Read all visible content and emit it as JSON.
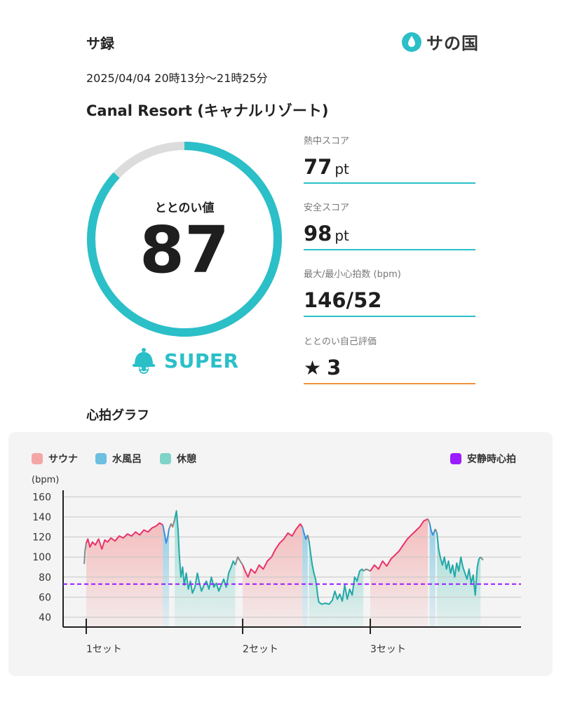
{
  "header": {
    "app_title": "サ録",
    "brand_name": "サの国",
    "datetime": "2025/04/04 20時13分〜21時25分",
    "facility": "Canal Resort (キャナルリゾート)"
  },
  "score": {
    "label": "ととのい値",
    "value": "87",
    "ring_fraction": 0.87,
    "rank": "SUPER",
    "rank_icon": "bell-character-icon"
  },
  "stats": [
    {
      "label": "熱中スコア",
      "value": "77",
      "unit": "pt"
    },
    {
      "label": "安全スコア",
      "value": "98",
      "unit": "pt"
    },
    {
      "label": "最大/最小心拍数 (bpm)",
      "value": "146/52",
      "unit": ""
    },
    {
      "label": "ととのい自己評価",
      "value": "3",
      "unit": "",
      "icon": "star-icon"
    }
  ],
  "graph": {
    "title": "心拍グラフ",
    "legend": {
      "sauna": "サウナ",
      "water": "水風呂",
      "rest": "休憩",
      "resting_hr": "安静時心拍"
    }
  },
  "colors": {
    "accent": "#2bbfc8",
    "sauna": "#f4a6a6",
    "water": "#6cbfe0",
    "rest": "#7fd3c8",
    "resting_hr": "#9b1cff",
    "sauna_line": "#e8336b",
    "rest_line": "#23a8a8",
    "water_line": "#3b8fdc",
    "transition_line": "#888888",
    "orange": "#f2913a"
  },
  "chart_data": {
    "type": "line",
    "ylabel": "(bpm)",
    "ylim": [
      30,
      170
    ],
    "y_ticks": [
      40,
      60,
      80,
      100,
      120,
      140,
      160
    ],
    "set_labels": [
      "1セット",
      "2セット",
      "3セット"
    ],
    "xlim": [
      0,
      100
    ],
    "set_positions": [
      0,
      38,
      69
    ],
    "resting_hr": 73,
    "segments": [
      {
        "phase": "sauna",
        "start": 0,
        "end": 18.6
      },
      {
        "phase": "water",
        "start": 18.6,
        "end": 20.1
      },
      {
        "phase": "rest",
        "start": 21.5,
        "end": 36.2
      },
      {
        "phase": "sauna",
        "start": 38,
        "end": 52.5
      },
      {
        "phase": "water",
        "start": 52.5,
        "end": 53.8
      },
      {
        "phase": "rest",
        "start": 54.1,
        "end": 67.3
      },
      {
        "phase": "sauna",
        "start": 69,
        "end": 83
      },
      {
        "phase": "water",
        "start": 83.4,
        "end": 84.8
      },
      {
        "phase": "rest",
        "start": 85.2,
        "end": 95.8
      }
    ],
    "series": [
      {
        "phase": "transition",
        "points": [
          [
            -0.5,
            93
          ],
          [
            -0.3,
            106
          ],
          [
            0,
            114
          ]
        ]
      },
      {
        "phase": "sauna",
        "points": [
          [
            0,
            114
          ],
          [
            0.4,
            118
          ],
          [
            0.9,
            110
          ],
          [
            1.5,
            115
          ],
          [
            2.2,
            112
          ],
          [
            3,
            118
          ],
          [
            3.8,
            108
          ],
          [
            4.5,
            117
          ],
          [
            5.2,
            115
          ],
          [
            6,
            119
          ],
          [
            7,
            116
          ],
          [
            8,
            121
          ],
          [
            9,
            119
          ],
          [
            10,
            123
          ],
          [
            11,
            121
          ],
          [
            12,
            125
          ],
          [
            13,
            122
          ],
          [
            14,
            127
          ],
          [
            15,
            125
          ],
          [
            16,
            129
          ],
          [
            17,
            131
          ],
          [
            17.8,
            134
          ],
          [
            18.6,
            132
          ]
        ]
      },
      {
        "phase": "water",
        "points": [
          [
            18.6,
            132
          ],
          [
            19,
            124
          ],
          [
            19.4,
            114
          ],
          [
            19.8,
            120
          ],
          [
            20.1,
            128
          ]
        ]
      },
      {
        "phase": "transition",
        "points": [
          [
            20.1,
            128
          ],
          [
            20.6,
            133
          ],
          [
            21,
            130
          ],
          [
            21.5,
            138
          ]
        ]
      },
      {
        "phase": "rest",
        "points": [
          [
            21.5,
            138
          ],
          [
            21.9,
            146
          ],
          [
            22.3,
            128
          ],
          [
            22.6,
            102
          ],
          [
            23,
            80
          ],
          [
            23.4,
            90
          ],
          [
            23.8,
            72
          ],
          [
            24.3,
            84
          ],
          [
            24.8,
            68
          ],
          [
            25.3,
            76
          ],
          [
            25.8,
            64
          ],
          [
            26.4,
            70
          ],
          [
            27,
            84
          ],
          [
            27.5,
            74
          ],
          [
            28,
            66
          ],
          [
            28.6,
            72
          ],
          [
            29.2,
            76
          ],
          [
            29.8,
            68
          ],
          [
            30.4,
            80
          ],
          [
            31,
            70
          ],
          [
            31.6,
            74
          ],
          [
            32.2,
            66
          ],
          [
            32.8,
            72
          ],
          [
            33.4,
            78
          ],
          [
            34,
            70
          ],
          [
            34.6,
            84
          ],
          [
            35.2,
            90
          ],
          [
            35.7,
            96
          ],
          [
            36.2,
            92
          ]
        ]
      },
      {
        "phase": "transition",
        "points": [
          [
            36.2,
            92
          ],
          [
            36.8,
            100
          ],
          [
            37.4,
            96
          ],
          [
            38,
            92
          ]
        ]
      },
      {
        "phase": "sauna",
        "points": [
          [
            38,
            92
          ],
          [
            38.6,
            86
          ],
          [
            39.3,
            80
          ],
          [
            40,
            88
          ],
          [
            41,
            84
          ],
          [
            42,
            92
          ],
          [
            43,
            88
          ],
          [
            44,
            96
          ],
          [
            45,
            100
          ],
          [
            46,
            108
          ],
          [
            47,
            114
          ],
          [
            48,
            118
          ],
          [
            49,
            124
          ],
          [
            50,
            121
          ],
          [
            51,
            128
          ],
          [
            52,
            133
          ],
          [
            52.5,
            130
          ]
        ]
      },
      {
        "phase": "water",
        "points": [
          [
            52.5,
            130
          ],
          [
            52.9,
            124
          ],
          [
            53.3,
            118
          ],
          [
            53.8,
            122
          ]
        ]
      },
      {
        "phase": "transition",
        "points": [
          [
            53.8,
            122
          ],
          [
            54.1,
            116
          ]
        ]
      },
      {
        "phase": "rest",
        "points": [
          [
            54.1,
            116
          ],
          [
            54.5,
            104
          ],
          [
            54.9,
            92
          ],
          [
            55.3,
            84
          ],
          [
            55.7,
            78
          ],
          [
            56,
            70
          ],
          [
            56.2,
            62
          ],
          [
            56.5,
            55
          ],
          [
            57.2,
            53
          ],
          [
            58,
            54
          ],
          [
            59,
            53
          ],
          [
            59.8,
            57
          ],
          [
            60.4,
            66
          ],
          [
            61,
            58
          ],
          [
            61.6,
            63
          ],
          [
            62.2,
            56
          ],
          [
            62.8,
            72
          ],
          [
            63.4,
            58
          ],
          [
            64,
            68
          ],
          [
            64.6,
            62
          ],
          [
            65.2,
            80
          ],
          [
            65.8,
            76
          ],
          [
            66.4,
            86
          ],
          [
            67,
            88
          ],
          [
            67.3,
            86
          ]
        ]
      },
      {
        "phase": "transition",
        "points": [
          [
            67.3,
            86
          ],
          [
            68,
            88
          ],
          [
            69,
            86
          ]
        ]
      },
      {
        "phase": "sauna",
        "points": [
          [
            69,
            86
          ],
          [
            70,
            92
          ],
          [
            71,
            88
          ],
          [
            72,
            96
          ],
          [
            73,
            91
          ],
          [
            74,
            98
          ],
          [
            75,
            102
          ],
          [
            76,
            106
          ],
          [
            77,
            112
          ],
          [
            78,
            118
          ],
          [
            79,
            122
          ],
          [
            80,
            126
          ],
          [
            81,
            130
          ],
          [
            82,
            136
          ],
          [
            83,
            138
          ]
        ]
      },
      {
        "phase": "transition",
        "points": [
          [
            83,
            138
          ],
          [
            83.4,
            134
          ]
        ]
      },
      {
        "phase": "water",
        "points": [
          [
            83.4,
            134
          ],
          [
            83.8,
            126
          ],
          [
            84.2,
            122
          ],
          [
            84.8,
            128
          ]
        ]
      },
      {
        "phase": "transition",
        "points": [
          [
            84.8,
            128
          ],
          [
            85.2,
            124
          ]
        ]
      },
      {
        "phase": "rest",
        "points": [
          [
            85.2,
            124
          ],
          [
            85.6,
            108
          ],
          [
            86,
            100
          ],
          [
            86.5,
            92
          ],
          [
            87,
            100
          ],
          [
            87.5,
            88
          ],
          [
            88,
            96
          ],
          [
            88.5,
            84
          ],
          [
            89,
            92
          ],
          [
            89.5,
            80
          ],
          [
            90,
            94
          ],
          [
            90.5,
            86
          ],
          [
            91,
            100
          ],
          [
            91.5,
            90
          ],
          [
            92,
            84
          ],
          [
            92.5,
            78
          ],
          [
            93,
            88
          ],
          [
            93.5,
            74
          ],
          [
            94,
            82
          ],
          [
            94.5,
            62
          ],
          [
            95,
            90
          ],
          [
            95.4,
            98
          ],
          [
            95.8,
            100
          ]
        ]
      },
      {
        "phase": "transition",
        "points": [
          [
            95.8,
            100
          ],
          [
            96.4,
            97
          ]
        ]
      }
    ]
  }
}
